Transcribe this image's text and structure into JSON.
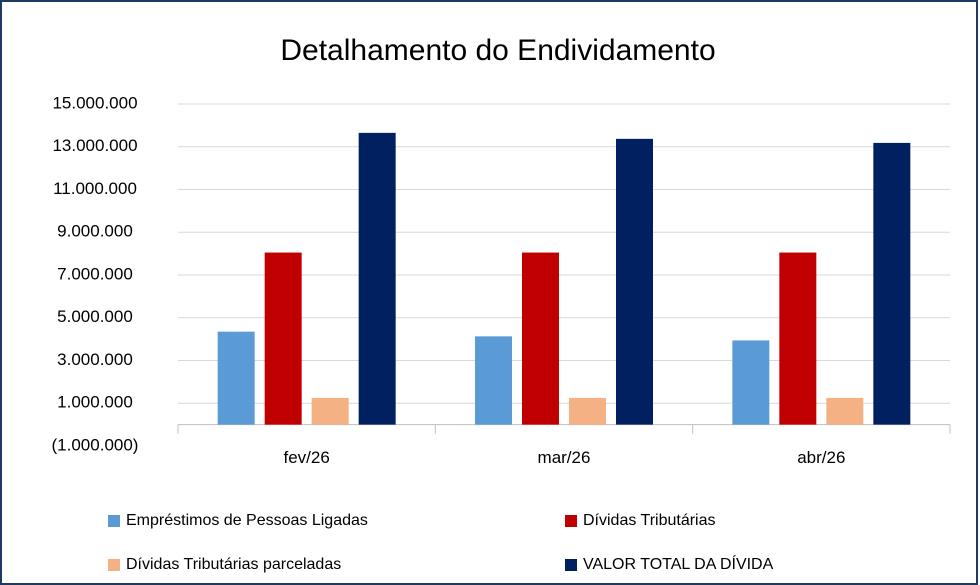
{
  "chart_data": {
    "type": "bar",
    "title": "Detalhamento do Endividamento",
    "categories": [
      "fev/26",
      "mar/26",
      "abr/26"
    ],
    "series": [
      {
        "name": "Empréstimos de Pessoas Ligadas",
        "color": "#5b9bd5",
        "values": [
          4350000,
          4130000,
          3940000
        ]
      },
      {
        "name": "Dívidas Tributárias",
        "color": "#c00000",
        "values": [
          8050000,
          8050000,
          8050000
        ]
      },
      {
        "name": "Dívidas Tributárias  parceladas",
        "color": "#f4b183",
        "values": [
          1250000,
          1250000,
          1250000
        ]
      },
      {
        "name": "VALOR TOTAL DA DÍVIDA",
        "color": "#002060",
        "values": [
          13650000,
          13370000,
          13180000
        ]
      }
    ],
    "ylim": [
      -1000000,
      15000000
    ],
    "yticks": [
      {
        "value": -1000000,
        "label": "(1.000.000)"
      },
      {
        "value": 1000000,
        "label": "1.000.000"
      },
      {
        "value": 3000000,
        "label": "3.000.000"
      },
      {
        "value": 5000000,
        "label": "5.000.000"
      },
      {
        "value": 7000000,
        "label": "7.000.000"
      },
      {
        "value": 9000000,
        "label": "9.000.000"
      },
      {
        "value": 11000000,
        "label": "11.000.000"
      },
      {
        "value": 13000000,
        "label": "13.000.000"
      },
      {
        "value": 15000000,
        "label": "15.000.000"
      }
    ],
    "grid": true
  }
}
